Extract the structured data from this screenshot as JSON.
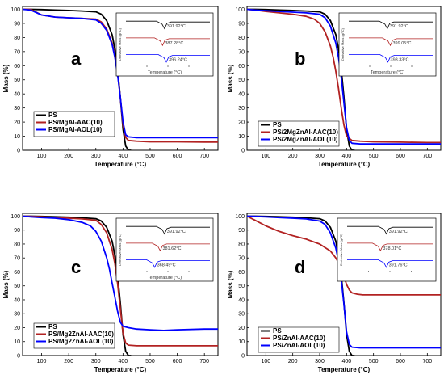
{
  "chart_data": [
    {
      "panel": "a",
      "type": "line",
      "xlabel": "Temperature (°C)",
      "ylabel": "Mass (%)",
      "xlim": [
        30,
        750
      ],
      "ylim": [
        0,
        102
      ],
      "xticks": [
        100,
        200,
        300,
        400,
        500,
        600,
        700
      ],
      "yticks": [
        0,
        10,
        20,
        30,
        40,
        50,
        60,
        70,
        80,
        90,
        100
      ],
      "legend_position": "bottom-left",
      "series": [
        {
          "name": "PS",
          "color": "#000000",
          "x": [
            30,
            60,
            100,
            150,
            200,
            250,
            300,
            320,
            340,
            360,
            370,
            380,
            390,
            400,
            410,
            420,
            430
          ],
          "y": [
            100,
            100,
            99.8,
            99.5,
            99.2,
            98.8,
            98.2,
            96.5,
            92,
            82,
            72,
            58,
            38,
            15,
            3,
            0,
            0
          ]
        },
        {
          "name": "PS/MgAl-AAC(10)",
          "color": "#b22222",
          "x": [
            30,
            60,
            100,
            150,
            200,
            250,
            300,
            320,
            340,
            360,
            370,
            380,
            390,
            400,
            410,
            420,
            450,
            500,
            600,
            700,
            750
          ],
          "y": [
            100,
            100,
            96,
            94.5,
            94,
            93.5,
            93,
            91,
            86,
            76,
            67,
            55,
            38,
            18,
            9,
            7,
            6.5,
            6,
            6,
            5.8,
            5.8
          ]
        },
        {
          "name": "PS/MgAl-AOL(10)",
          "color": "#0000ff",
          "x": [
            30,
            60,
            100,
            150,
            200,
            250,
            300,
            320,
            340,
            360,
            370,
            380,
            390,
            400,
            410,
            420,
            450,
            500,
            600,
            700,
            750
          ],
          "y": [
            100,
            99.5,
            96,
            94.5,
            94,
            93.5,
            92.5,
            90,
            85,
            75,
            66,
            54,
            38,
            20,
            11,
            9.5,
            9,
            9,
            9,
            9,
            9
          ]
        }
      ],
      "inset": {
        "ylabel": "Derivative Mass (g/°C)",
        "xlabel": "Temperature (°C)",
        "peaks": [
          {
            "series": "PS",
            "label": "391.92°C",
            "temperature": 391.92,
            "color": "#000000"
          },
          {
            "series": "PS/MgAl-AAC(10)",
            "label": "387.28°C",
            "temperature": 387.28,
            "color": "#b22222"
          },
          {
            "series": "PS/MgAl-AOL(10)",
            "label": "396.24°C",
            "temperature": 396.24,
            "color": "#0000ff"
          }
        ]
      }
    },
    {
      "panel": "b",
      "type": "line",
      "xlabel": "Temperature (°C)",
      "ylabel": "Mass (%)",
      "xlim": [
        30,
        750
      ],
      "ylim": [
        0,
        102
      ],
      "xticks": [
        100,
        200,
        300,
        400,
        500,
        600,
        700
      ],
      "yticks": [
        0,
        10,
        20,
        30,
        40,
        50,
        60,
        70,
        80,
        90,
        100
      ],
      "legend_position": "bottom-left",
      "series": [
        {
          "name": "PS",
          "color": "#000000",
          "x": [
            30,
            60,
            100,
            150,
            200,
            250,
            300,
            320,
            340,
            360,
            370,
            380,
            390,
            400,
            410,
            420,
            430
          ],
          "y": [
            100,
            100,
            99.8,
            99.5,
            99.2,
            98.8,
            98.2,
            96.5,
            92,
            82,
            72,
            58,
            38,
            15,
            3,
            0,
            0
          ]
        },
        {
          "name": "PS/2MgZnAl-AAC(10)",
          "color": "#b22222",
          "x": [
            30,
            60,
            100,
            150,
            200,
            250,
            280,
            300,
            320,
            340,
            350,
            360,
            370,
            380,
            390,
            400,
            420,
            450,
            500,
            600,
            700,
            750
          ],
          "y": [
            100,
            99.5,
            98.5,
            97.5,
            96.5,
            95,
            93,
            90,
            84,
            74,
            66,
            56,
            44,
            30,
            18,
            10,
            7,
            6.5,
            6,
            5.8,
            5.5,
            5.5
          ]
        },
        {
          "name": "PS/2MgZnAl-AOL(10)",
          "color": "#0000ff",
          "x": [
            30,
            60,
            100,
            150,
            200,
            250,
            300,
            320,
            340,
            360,
            370,
            380,
            390,
            400,
            410,
            420,
            450,
            500,
            600,
            700,
            750
          ],
          "y": [
            100,
            99.5,
            99,
            98.5,
            98,
            97.5,
            96.5,
            94,
            88,
            76,
            66,
            52,
            34,
            16,
            7,
            5,
            4.5,
            4.5,
            4.5,
            4.5,
            4.5
          ]
        }
      ],
      "inset": {
        "ylabel": "Derivative Mass (g/°C)",
        "xlabel": "Temperature (°C)",
        "peaks": [
          {
            "series": "PS",
            "label": "391.92°C",
            "temperature": 391.92,
            "color": "#000000"
          },
          {
            "series": "PS/2MgZnAl-AAC(10)",
            "label": "399.05°C",
            "temperature": 399.05,
            "color": "#b22222"
          },
          {
            "series": "PS/2MgZnAl-AOL(10)",
            "label": "393.33°C",
            "temperature": 393.33,
            "color": "#0000ff"
          }
        ]
      }
    },
    {
      "panel": "c",
      "type": "line",
      "xlabel": "Temperature (°C)",
      "ylabel": "Mass (%)",
      "xlim": [
        30,
        750
      ],
      "ylim": [
        0,
        102
      ],
      "xticks": [
        100,
        200,
        300,
        400,
        500,
        600,
        700
      ],
      "yticks": [
        0,
        10,
        20,
        30,
        40,
        50,
        60,
        70,
        80,
        90,
        100
      ],
      "legend_position": "bottom-left",
      "series": [
        {
          "name": "PS",
          "color": "#000000",
          "x": [
            30,
            60,
            100,
            150,
            200,
            250,
            300,
            320,
            340,
            360,
            370,
            380,
            390,
            400,
            410,
            420,
            430
          ],
          "y": [
            100,
            100,
            99.8,
            99.5,
            99.2,
            98.8,
            98.2,
            96.5,
            92,
            82,
            72,
            58,
            38,
            15,
            3,
            0,
            0
          ]
        },
        {
          "name": "PS/Mg2ZnAl-AAC(10)",
          "color": "#b22222",
          "x": [
            30,
            60,
            100,
            150,
            200,
            250,
            300,
            320,
            340,
            360,
            370,
            380,
            390,
            400,
            410,
            420,
            450,
            500,
            600,
            700,
            750
          ],
          "y": [
            100,
            99.8,
            99.5,
            99,
            98.5,
            98,
            97,
            94,
            88,
            76,
            66,
            52,
            34,
            16,
            9,
            7.5,
            7,
            7,
            7,
            7,
            7
          ]
        },
        {
          "name": "PS/Mg2ZnAl-AOL(10)",
          "color": "#0000ff",
          "x": [
            30,
            60,
            100,
            150,
            200,
            250,
            280,
            300,
            320,
            340,
            350,
            360,
            370,
            380,
            390,
            400,
            420,
            450,
            500,
            550,
            600,
            700,
            750
          ],
          "y": [
            100,
            99.5,
            99,
            98.5,
            97.5,
            95.5,
            93,
            89,
            82,
            70,
            62,
            52,
            42,
            32,
            24,
            21,
            20,
            19,
            18.5,
            18,
            18.5,
            19,
            19
          ]
        }
      ],
      "inset": {
        "ylabel": "Derivative Mass (g/°C)",
        "xlabel": "Temperature (°C)",
        "peaks": [
          {
            "series": "PS",
            "label": "391.92°C",
            "temperature": 391.92,
            "color": "#000000"
          },
          {
            "series": "PS/Mg2ZnAl-AAC(10)",
            "label": "381.62°C",
            "temperature": 381.62,
            "color": "#b22222"
          },
          {
            "series": "PS/Mg2ZnAl-AOL(10)",
            "label": "368.49°C",
            "temperature": 368.49,
            "color": "#0000ff"
          }
        ]
      }
    },
    {
      "panel": "d",
      "type": "line",
      "xlabel": "Temperature (°C)",
      "ylabel": "Mass (%)",
      "xlim": [
        30,
        750
      ],
      "ylim": [
        0,
        102
      ],
      "xticks": [
        100,
        200,
        300,
        400,
        500,
        600,
        700
      ],
      "yticks": [
        0,
        10,
        20,
        30,
        40,
        50,
        60,
        70,
        80,
        90,
        100
      ],
      "legend_position": "bottom-left",
      "series": [
        {
          "name": "PS",
          "color": "#000000",
          "x": [
            30,
            60,
            100,
            150,
            200,
            250,
            300,
            320,
            340,
            360,
            370,
            380,
            390,
            400,
            410,
            420,
            430
          ],
          "y": [
            100,
            100,
            99.8,
            99.5,
            99.2,
            98.8,
            98.2,
            96.5,
            92,
            82,
            72,
            58,
            38,
            15,
            3,
            0,
            0
          ]
        },
        {
          "name": "PS/ZnAl-AAC(10)",
          "color": "#b22222",
          "x": [
            30,
            60,
            100,
            150,
            200,
            250,
            300,
            340,
            360,
            380,
            390,
            400,
            410,
            420,
            440,
            460,
            500,
            600,
            700,
            750
          ],
          "y": [
            100,
            97,
            93,
            89,
            86,
            83.5,
            80,
            75,
            70,
            63,
            57,
            51,
            47,
            45,
            44,
            43.5,
            43.5,
            43.5,
            43.5,
            43.5
          ]
        },
        {
          "name": "PS/ZnAl-AOL(10)",
          "color": "#0000ff",
          "x": [
            30,
            60,
            100,
            150,
            200,
            250,
            300,
            320,
            340,
            360,
            370,
            380,
            390,
            400,
            410,
            420,
            450,
            500,
            600,
            700,
            750
          ],
          "y": [
            100,
            99.8,
            99.5,
            99,
            98.5,
            98,
            96.5,
            94,
            88,
            77,
            68,
            55,
            37,
            17,
            8,
            6,
            5.5,
            5.5,
            5.5,
            5.5,
            5.5
          ]
        }
      ],
      "inset": {
        "ylabel": "Derivative Mass (g/°C)",
        "xlabel": "",
        "peaks": [
          {
            "series": "PS",
            "label": "391.92°C",
            "temperature": 391.92,
            "color": "#000000"
          },
          {
            "series": "PS/ZnAl-AAC(10)",
            "label": "378.01°C",
            "temperature": 378.01,
            "color": "#b22222"
          },
          {
            "series": "PS/ZnAl-AOL(10)",
            "label": "391.76°C",
            "temperature": 391.76,
            "color": "#0000ff"
          }
        ]
      }
    }
  ]
}
